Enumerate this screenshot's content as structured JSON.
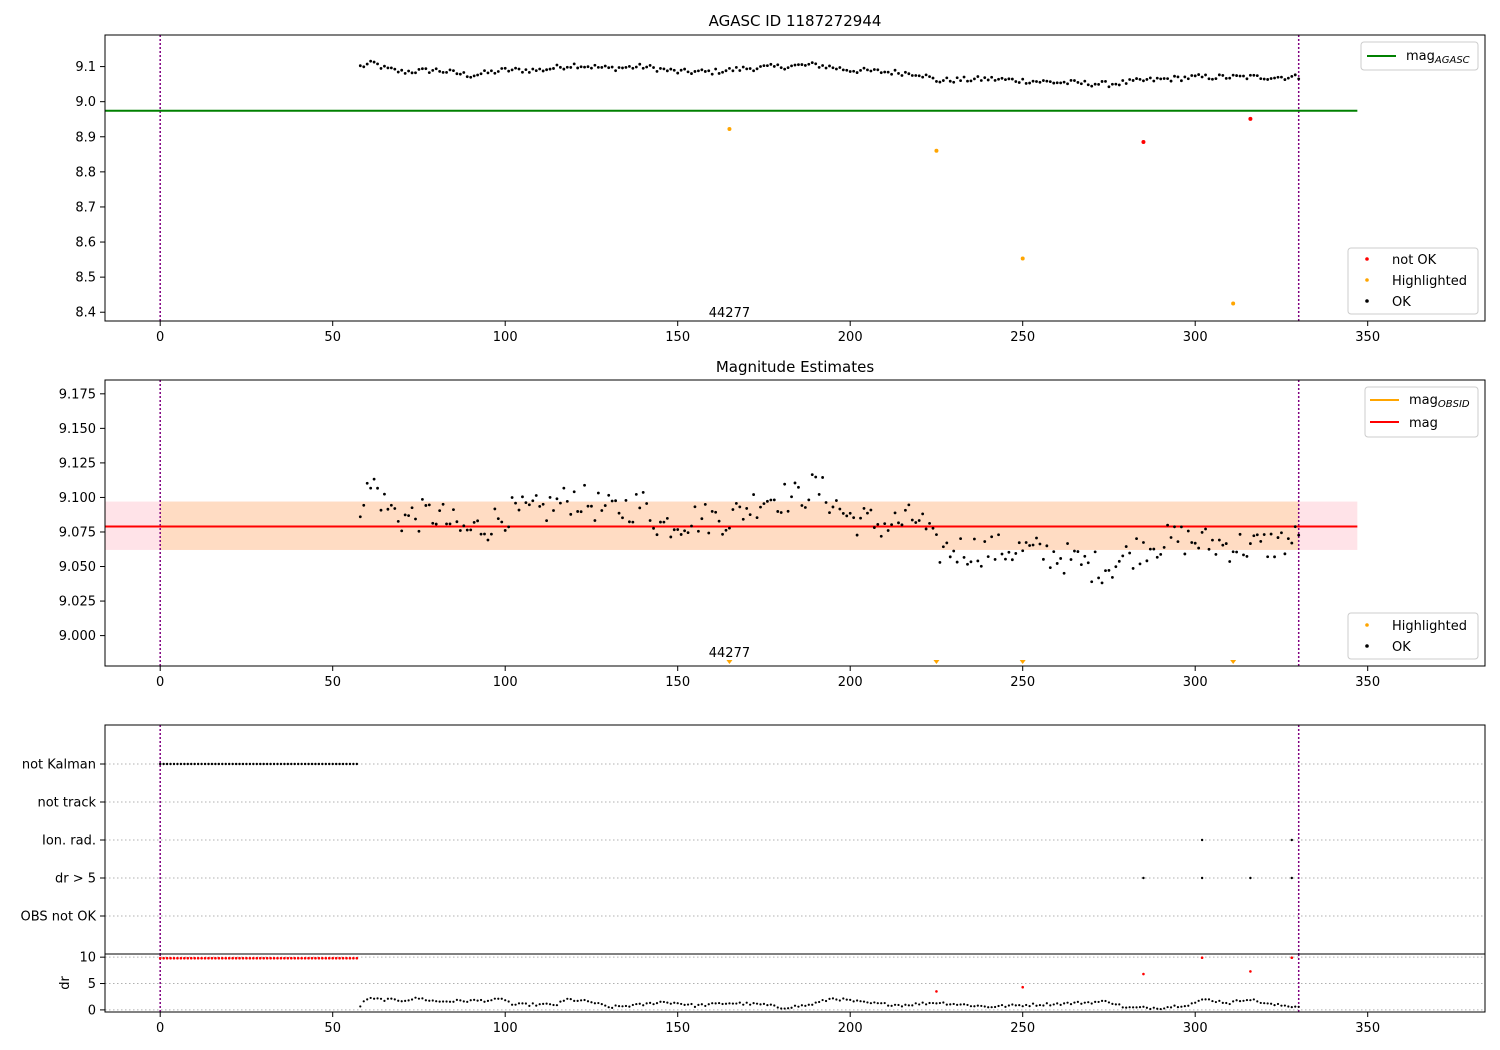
{
  "colors": {
    "ok": "#000000",
    "not_ok": "#ff0000",
    "highlighted": "#ffa500",
    "mag_agasc_line": "#008000",
    "mag_line": "#ff0000",
    "mag_obsid_line": "#ffa500",
    "obs_window": "#800080",
    "band_outer": "#ffc0cb",
    "band_inner": "#ffdab9",
    "grid": "#b0b0b0"
  },
  "chart_data": [
    {
      "id": "agasc",
      "type": "scatter",
      "title": "AGASC ID 1187272944",
      "xlim": [
        -16,
        384
      ],
      "ylim": [
        8.375,
        9.19
      ],
      "xticks": [
        0,
        50,
        100,
        150,
        200,
        250,
        300,
        350
      ],
      "yticks": [
        8.4,
        8.5,
        8.6,
        8.7,
        8.8,
        8.9,
        9.0,
        9.1
      ],
      "obs_window": [
        0,
        330
      ],
      "annotation": {
        "text": "44277",
        "x": 165,
        "y": 8.4
      },
      "hline": {
        "name": "mag",
        "sub": "AGASC",
        "value": 8.974,
        "x_end": 347
      },
      "legend_line": {
        "position": "upper right"
      },
      "legend_points": {
        "position": "lower right",
        "entries": [
          "not OK",
          "Highlighted",
          "OK"
        ]
      },
      "ok_anchors": [
        [
          58,
          9.1
        ],
        [
          62,
          9.11
        ],
        [
          65,
          9.095
        ],
        [
          70,
          9.085
        ],
        [
          80,
          9.09
        ],
        [
          90,
          9.075
        ],
        [
          100,
          9.09
        ],
        [
          110,
          9.09
        ],
        [
          120,
          9.105
        ],
        [
          130,
          9.095
        ],
        [
          140,
          9.1
        ],
        [
          150,
          9.085
        ],
        [
          160,
          9.085
        ],
        [
          170,
          9.095
        ],
        [
          180,
          9.1
        ],
        [
          190,
          9.105
        ],
        [
          200,
          9.09
        ],
        [
          210,
          9.085
        ],
        [
          220,
          9.08
        ],
        [
          225,
          9.06
        ],
        [
          240,
          9.065
        ],
        [
          260,
          9.055
        ],
        [
          275,
          9.05
        ],
        [
          285,
          9.06
        ],
        [
          300,
          9.07
        ],
        [
          315,
          9.07
        ],
        [
          330,
          9.07
        ]
      ],
      "ok_x_range": [
        58,
        330
      ],
      "ok_x_step": 1.0,
      "highlighted_points": [
        [
          165,
          8.922
        ],
        [
          225,
          8.86
        ],
        [
          250,
          8.553
        ],
        [
          311,
          8.425
        ]
      ],
      "not_ok_points": [
        [
          285,
          8.885
        ],
        [
          316,
          8.951
        ]
      ]
    },
    {
      "id": "estimates",
      "type": "scatter",
      "title": "Magnitude Estimates",
      "xlim": [
        -16,
        384
      ],
      "ylim": [
        8.978,
        9.185
      ],
      "xticks": [
        0,
        50,
        100,
        150,
        200,
        250,
        300,
        350
      ],
      "yticks": [
        9.0,
        9.025,
        9.05,
        9.075,
        9.1,
        9.125,
        9.15,
        9.175
      ],
      "obs_window": [
        0,
        330
      ],
      "annotation": {
        "text": "44277",
        "x": 165,
        "y": 8.983
      },
      "band_outer": [
        9.062,
        9.097
      ],
      "band_x_end": 347,
      "band_inner_x": [
        0,
        330
      ],
      "mag_line": {
        "name": "mag",
        "value": 9.079,
        "x_end": 347
      },
      "mag_obsid_line": {
        "name": "mag",
        "sub": "OBSID",
        "value": 9.079,
        "x_range": [
          58,
          330
        ]
      },
      "legend_line": {
        "position": "upper right"
      },
      "legend_points": {
        "position": "lower right",
        "entries": [
          "Highlighted",
          "OK"
        ]
      },
      "ok_anchors": [
        [
          58,
          9.097
        ],
        [
          62,
          9.11
        ],
        [
          65,
          9.095
        ],
        [
          70,
          9.085
        ],
        [
          80,
          9.088
        ],
        [
          88,
          9.075
        ],
        [
          95,
          9.08
        ],
        [
          100,
          9.088
        ],
        [
          110,
          9.09
        ],
        [
          120,
          9.1
        ],
        [
          130,
          9.09
        ],
        [
          140,
          9.095
        ],
        [
          145,
          9.08
        ],
        [
          155,
          9.085
        ],
        [
          165,
          9.085
        ],
        [
          175,
          9.1
        ],
        [
          185,
          9.1
        ],
        [
          190,
          9.108
        ],
        [
          200,
          9.085
        ],
        [
          210,
          9.08
        ],
        [
          220,
          9.085
        ],
        [
          225,
          9.062
        ],
        [
          235,
          9.062
        ],
        [
          250,
          9.062
        ],
        [
          260,
          9.058
        ],
        [
          270,
          9.05
        ],
        [
          275,
          9.05
        ],
        [
          285,
          9.065
        ],
        [
          295,
          9.07
        ],
        [
          310,
          9.065
        ],
        [
          320,
          9.065
        ],
        [
          330,
          9.07
        ]
      ],
      "ok_x_range": [
        58,
        330
      ],
      "ok_x_step": 1.0,
      "offscale_highlighted_x": [
        165,
        225,
        250,
        311
      ]
    },
    {
      "id": "flags",
      "type": "scatter",
      "xlim": [
        -16,
        384
      ],
      "xticks": [
        0,
        50,
        100,
        150,
        200,
        250,
        300,
        350
      ],
      "obs_window": [
        0,
        330
      ],
      "categories": [
        "not Kalman",
        "not track",
        "Ion. rad.",
        "dr > 5",
        "OBS not OK"
      ],
      "flag_points": {
        "not Kalman": {
          "x_range": [
            0,
            57
          ],
          "step": 1.0
        },
        "not track": {
          "x": []
        },
        "Ion. rad.": {
          "x": [
            302,
            328
          ]
        },
        "dr > 5": {
          "x": [
            285,
            302,
            316,
            328
          ]
        },
        "OBS not OK": {
          "x": []
        }
      }
    },
    {
      "id": "dr",
      "type": "scatter",
      "ylabel": "dr",
      "xlim": [
        -16,
        384
      ],
      "ylim": [
        -0.4,
        10.6
      ],
      "xticks": [
        0,
        50,
        100,
        150,
        200,
        250,
        300,
        350
      ],
      "yticks": [
        0,
        5,
        10
      ],
      "obs_window": [
        0,
        330
      ],
      "not_ok_flat": {
        "x_range": [
          0,
          57
        ],
        "step": 1.0,
        "value": 9.8
      },
      "not_ok_points": [
        [
          225,
          3.5
        ],
        [
          250,
          4.3
        ],
        [
          285,
          6.8
        ],
        [
          302,
          9.9
        ],
        [
          316,
          7.3
        ],
        [
          328,
          9.9
        ]
      ],
      "ok_anchors": [
        [
          58,
          0.8
        ],
        [
          60,
          2.1
        ],
        [
          70,
          1.8
        ],
        [
          75,
          2.2
        ],
        [
          80,
          1.6
        ],
        [
          95,
          1.8
        ],
        [
          100,
          2.0
        ],
        [
          102,
          1.0
        ],
        [
          115,
          1.0
        ],
        [
          118,
          2.0
        ],
        [
          125,
          1.5
        ],
        [
          130,
          0.5
        ],
        [
          140,
          1.0
        ],
        [
          145,
          1.5
        ],
        [
          150,
          1.3
        ],
        [
          155,
          0.8
        ],
        [
          165,
          1.3
        ],
        [
          175,
          1.0
        ],
        [
          180,
          0.4
        ],
        [
          188,
          0.9
        ],
        [
          195,
          2.2
        ],
        [
          205,
          1.3
        ],
        [
          215,
          0.9
        ],
        [
          225,
          1.4
        ],
        [
          240,
          0.6
        ],
        [
          250,
          0.9
        ],
        [
          262,
          1.2
        ],
        [
          275,
          1.6
        ],
        [
          280,
          0.4
        ],
        [
          290,
          0.4
        ],
        [
          298,
          1.0
        ],
        [
          303,
          2.0
        ],
        [
          310,
          1.3
        ],
        [
          315,
          2.1
        ],
        [
          322,
          1.0
        ],
        [
          330,
          0.6
        ]
      ],
      "ok_x_range": [
        58,
        330
      ],
      "ok_x_step": 1.0
    }
  ]
}
